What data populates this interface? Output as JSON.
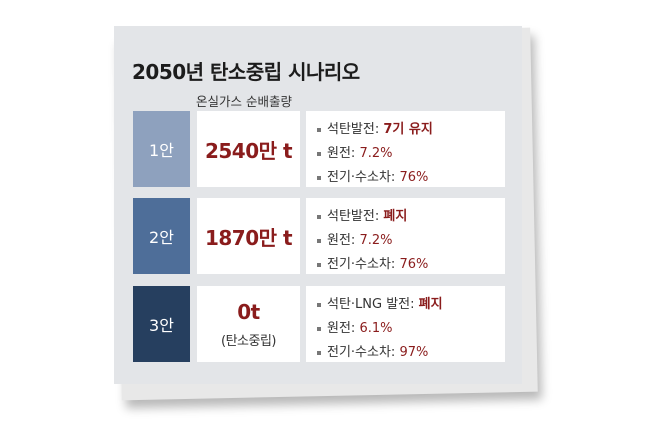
{
  "title": "2050년 탄소중립 시나리오",
  "subtitle": "온실가스 순배출량",
  "colors": {
    "scenario1": "#8ea1be",
    "scenario2": "#4e6e99",
    "scenario3": "#263f5f",
    "highlight": "#8a1c1c"
  },
  "scenarios": [
    {
      "label": "1안",
      "amount": "2540만 t",
      "amount_sub": "",
      "details": [
        {
          "key": "석탄발전:",
          "value": "7기 유지"
        },
        {
          "key": "원전:",
          "value": "7.2%"
        },
        {
          "key": "전기·수소차:",
          "value": "76%"
        }
      ]
    },
    {
      "label": "2안",
      "amount": "1870만 t",
      "amount_sub": "",
      "details": [
        {
          "key": "석탄발전:",
          "value": "폐지"
        },
        {
          "key": "원전:",
          "value": "7.2%"
        },
        {
          "key": "전기·수소차:",
          "value": "76%"
        }
      ]
    },
    {
      "label": "3안",
      "amount": "0t",
      "amount_sub": "(탄소중립)",
      "details": [
        {
          "key": "석탄·LNG 발전:",
          "value": "폐지"
        },
        {
          "key": "원전:",
          "value": "6.1%"
        },
        {
          "key": "전기·수소차:",
          "value": "97%"
        }
      ]
    }
  ]
}
